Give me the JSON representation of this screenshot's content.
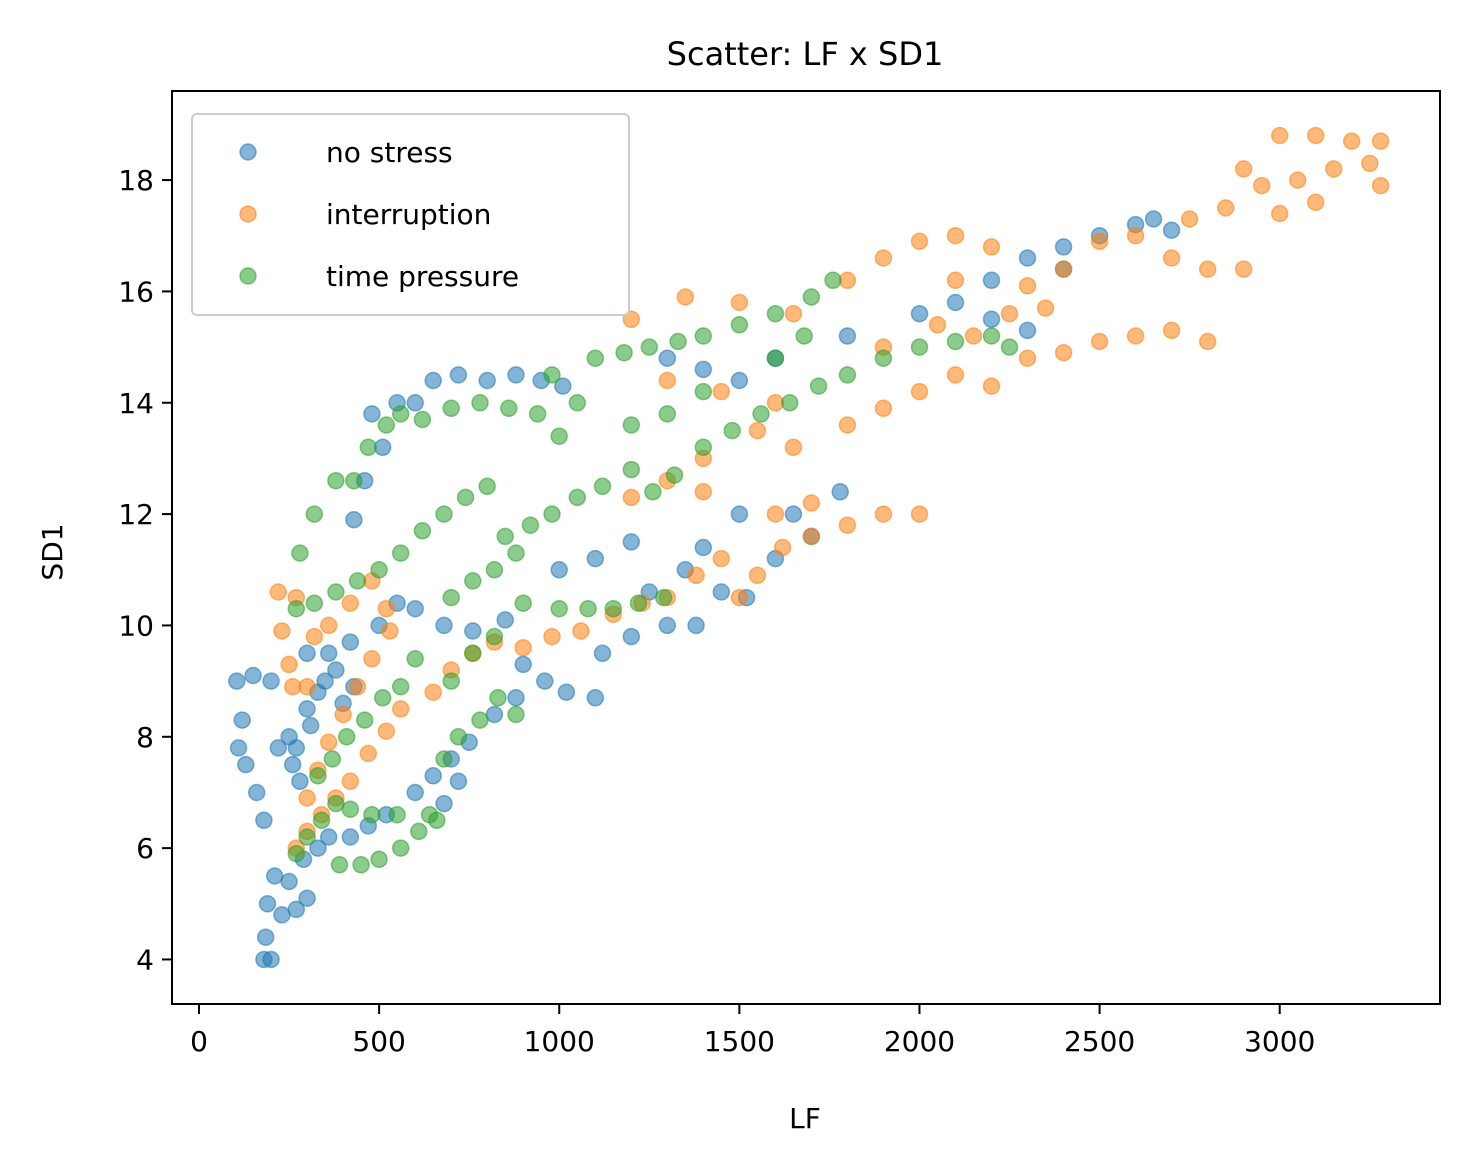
{
  "chart_data": {
    "type": "scatter",
    "title": "Scatter: LF x SD1",
    "xlabel": "LF",
    "ylabel": "SD1",
    "xlim": [
      -75,
      3445
    ],
    "ylim": [
      3.2,
      19.6
    ],
    "xticks": [
      0,
      500,
      1000,
      1500,
      2000,
      2500,
      3000
    ],
    "yticks": [
      4,
      6,
      8,
      10,
      12,
      14,
      16,
      18
    ],
    "grid": false,
    "legend_position": "upper left",
    "series": [
      {
        "name": "no stress",
        "color": "#1f77b4",
        "points": [
          [
            180,
            4.0
          ],
          [
            200,
            4.0
          ],
          [
            185,
            4.4
          ],
          [
            190,
            5.0
          ],
          [
            230,
            4.8
          ],
          [
            270,
            4.9
          ],
          [
            300,
            5.1
          ],
          [
            210,
            5.5
          ],
          [
            250,
            5.4
          ],
          [
            290,
            5.8
          ],
          [
            330,
            6.0
          ],
          [
            360,
            6.2
          ],
          [
            420,
            6.2
          ],
          [
            470,
            6.4
          ],
          [
            520,
            6.6
          ],
          [
            180,
            6.5
          ],
          [
            160,
            7.0
          ],
          [
            130,
            7.5
          ],
          [
            110,
            7.8
          ],
          [
            120,
            8.3
          ],
          [
            105,
            9.0
          ],
          [
            150,
            9.1
          ],
          [
            200,
            9.0
          ],
          [
            220,
            7.8
          ],
          [
            260,
            7.5
          ],
          [
            280,
            7.2
          ],
          [
            310,
            8.2
          ],
          [
            330,
            8.8
          ],
          [
            300,
            8.5
          ],
          [
            350,
            9.0
          ],
          [
            380,
            9.2
          ],
          [
            270,
            7.8
          ],
          [
            250,
            8.0
          ],
          [
            400,
            8.6
          ],
          [
            430,
            8.9
          ],
          [
            300,
            9.5
          ],
          [
            360,
            9.5
          ],
          [
            420,
            9.7
          ],
          [
            500,
            10.0
          ],
          [
            550,
            10.4
          ],
          [
            600,
            10.3
          ],
          [
            680,
            10.0
          ],
          [
            760,
            9.9
          ],
          [
            850,
            10.1
          ],
          [
            900,
            9.3
          ],
          [
            960,
            9.0
          ],
          [
            1020,
            8.8
          ],
          [
            1100,
            8.7
          ],
          [
            1120,
            9.5
          ],
          [
            1200,
            9.8
          ],
          [
            1300,
            10.0
          ],
          [
            1380,
            10.0
          ],
          [
            1250,
            10.6
          ],
          [
            1450,
            10.6
          ],
          [
            1520,
            10.5
          ],
          [
            1600,
            11.2
          ],
          [
            1700,
            11.6
          ],
          [
            1780,
            12.4
          ],
          [
            1650,
            12.0
          ],
          [
            1500,
            12.0
          ],
          [
            1400,
            11.4
          ],
          [
            1350,
            11.0
          ],
          [
            1200,
            11.5
          ],
          [
            1100,
            11.2
          ],
          [
            1000,
            11.0
          ],
          [
            550,
            14.0
          ],
          [
            600,
            14.0
          ],
          [
            480,
            13.8
          ],
          [
            510,
            13.2
          ],
          [
            460,
            12.6
          ],
          [
            430,
            11.9
          ],
          [
            650,
            14.4
          ],
          [
            720,
            14.5
          ],
          [
            800,
            14.4
          ],
          [
            880,
            14.5
          ],
          [
            950,
            14.4
          ],
          [
            1010,
            14.3
          ],
          [
            1300,
            14.8
          ],
          [
            1400,
            14.6
          ],
          [
            1500,
            14.4
          ],
          [
            1600,
            14.8
          ],
          [
            1800,
            15.2
          ],
          [
            2000,
            15.6
          ],
          [
            2100,
            15.8
          ],
          [
            2200,
            15.5
          ],
          [
            2300,
            15.3
          ],
          [
            2200,
            16.2
          ],
          [
            2300,
            16.6
          ],
          [
            2400,
            16.8
          ],
          [
            2500,
            17.0
          ],
          [
            2600,
            17.2
          ],
          [
            2650,
            17.3
          ],
          [
            2700,
            17.1
          ],
          [
            2400,
            16.4
          ],
          [
            600,
            7.0
          ],
          [
            650,
            7.3
          ],
          [
            700,
            7.6
          ],
          [
            750,
            7.9
          ],
          [
            820,
            8.4
          ],
          [
            880,
            8.7
          ],
          [
            680,
            6.8
          ],
          [
            720,
            7.2
          ]
        ]
      },
      {
        "name": "interruption",
        "color": "#ff7f0e",
        "points": [
          [
            270,
            6.0
          ],
          [
            300,
            6.3
          ],
          [
            340,
            6.6
          ],
          [
            380,
            6.9
          ],
          [
            420,
            7.2
          ],
          [
            470,
            7.7
          ],
          [
            520,
            8.1
          ],
          [
            560,
            8.5
          ],
          [
            300,
            6.9
          ],
          [
            330,
            7.4
          ],
          [
            360,
            7.9
          ],
          [
            400,
            8.4
          ],
          [
            440,
            8.9
          ],
          [
            480,
            9.4
          ],
          [
            530,
            9.9
          ],
          [
            250,
            9.3
          ],
          [
            230,
            9.9
          ],
          [
            220,
            10.6
          ],
          [
            270,
            10.5
          ],
          [
            260,
            8.9
          ],
          [
            300,
            8.9
          ],
          [
            320,
            9.8
          ],
          [
            360,
            10.0
          ],
          [
            420,
            10.4
          ],
          [
            480,
            10.8
          ],
          [
            520,
            10.3
          ],
          [
            650,
            8.8
          ],
          [
            700,
            9.2
          ],
          [
            760,
            9.5
          ],
          [
            820,
            9.7
          ],
          [
            900,
            9.6
          ],
          [
            980,
            9.8
          ],
          [
            1060,
            9.9
          ],
          [
            1150,
            10.2
          ],
          [
            1230,
            10.4
          ],
          [
            1300,
            10.5
          ],
          [
            1380,
            10.9
          ],
          [
            1450,
            11.2
          ],
          [
            1500,
            10.5
          ],
          [
            1550,
            10.9
          ],
          [
            1620,
            11.4
          ],
          [
            1700,
            11.6
          ],
          [
            1800,
            11.8
          ],
          [
            1900,
            12.0
          ],
          [
            2000,
            12.0
          ],
          [
            1600,
            12.0
          ],
          [
            1700,
            12.2
          ],
          [
            1400,
            12.4
          ],
          [
            1300,
            12.6
          ],
          [
            1200,
            12.3
          ],
          [
            1400,
            13.0
          ],
          [
            1550,
            13.5
          ],
          [
            1650,
            13.2
          ],
          [
            1800,
            13.6
          ],
          [
            1900,
            13.9
          ],
          [
            2000,
            14.2
          ],
          [
            2100,
            14.5
          ],
          [
            2200,
            14.3
          ],
          [
            2300,
            14.8
          ],
          [
            2400,
            14.9
          ],
          [
            2500,
            15.1
          ],
          [
            2600,
            15.2
          ],
          [
            2700,
            15.3
          ],
          [
            2800,
            15.1
          ],
          [
            1200,
            15.5
          ],
          [
            1350,
            15.9
          ],
          [
            1500,
            15.8
          ],
          [
            1650,
            15.6
          ],
          [
            1800,
            16.2
          ],
          [
            1900,
            16.6
          ],
          [
            2000,
            16.9
          ],
          [
            2100,
            17.0
          ],
          [
            2200,
            16.8
          ],
          [
            2100,
            16.2
          ],
          [
            2300,
            16.1
          ],
          [
            2400,
            16.4
          ],
          [
            2500,
            16.9
          ],
          [
            2600,
            17.0
          ],
          [
            2700,
            16.6
          ],
          [
            2800,
            16.4
          ],
          [
            2900,
            16.4
          ],
          [
            2750,
            17.3
          ],
          [
            2850,
            17.5
          ],
          [
            2950,
            17.9
          ],
          [
            3050,
            18.0
          ],
          [
            3150,
            18.2
          ],
          [
            3250,
            18.3
          ],
          [
            3280,
            17.9
          ],
          [
            2900,
            18.2
          ],
          [
            3000,
            18.8
          ],
          [
            3100,
            18.8
          ],
          [
            3200,
            18.7
          ],
          [
            3280,
            18.7
          ],
          [
            3100,
            17.6
          ],
          [
            3000,
            17.4
          ],
          [
            1900,
            15.0
          ],
          [
            2050,
            15.4
          ],
          [
            2150,
            15.2
          ],
          [
            2250,
            15.6
          ],
          [
            2350,
            15.7
          ],
          [
            1300,
            14.4
          ],
          [
            1450,
            14.2
          ],
          [
            1600,
            14.0
          ]
        ]
      },
      {
        "name": "time pressure",
        "color": "#2ca02c",
        "points": [
          [
            270,
            5.9
          ],
          [
            300,
            6.2
          ],
          [
            340,
            6.5
          ],
          [
            380,
            6.8
          ],
          [
            420,
            6.7
          ],
          [
            480,
            6.6
          ],
          [
            550,
            6.6
          ],
          [
            640,
            6.6
          ],
          [
            390,
            5.7
          ],
          [
            450,
            5.7
          ],
          [
            500,
            5.8
          ],
          [
            560,
            6.0
          ],
          [
            610,
            6.3
          ],
          [
            660,
            6.5
          ],
          [
            330,
            7.3
          ],
          [
            370,
            7.6
          ],
          [
            410,
            8.0
          ],
          [
            460,
            8.3
          ],
          [
            510,
            8.7
          ],
          [
            560,
            8.9
          ],
          [
            600,
            9.4
          ],
          [
            680,
            7.6
          ],
          [
            720,
            8.0
          ],
          [
            780,
            8.3
          ],
          [
            830,
            8.7
          ],
          [
            880,
            8.4
          ],
          [
            270,
            10.3
          ],
          [
            320,
            10.4
          ],
          [
            380,
            10.6
          ],
          [
            440,
            10.8
          ],
          [
            500,
            11.0
          ],
          [
            560,
            11.3
          ],
          [
            620,
            11.7
          ],
          [
            680,
            12.0
          ],
          [
            740,
            12.3
          ],
          [
            800,
            12.5
          ],
          [
            280,
            11.3
          ],
          [
            320,
            12.0
          ],
          [
            380,
            12.6
          ],
          [
            430,
            12.6
          ],
          [
            470,
            13.2
          ],
          [
            520,
            13.6
          ],
          [
            560,
            13.8
          ],
          [
            620,
            13.7
          ],
          [
            700,
            13.9
          ],
          [
            780,
            14.0
          ],
          [
            860,
            13.9
          ],
          [
            940,
            13.8
          ],
          [
            1000,
            13.4
          ],
          [
            850,
            11.6
          ],
          [
            920,
            11.8
          ],
          [
            980,
            12.0
          ],
          [
            1050,
            12.3
          ],
          [
            1120,
            12.5
          ],
          [
            1200,
            12.8
          ],
          [
            1260,
            12.4
          ],
          [
            1320,
            12.7
          ],
          [
            1400,
            13.2
          ],
          [
            1480,
            13.5
          ],
          [
            1560,
            13.8
          ],
          [
            1640,
            14.0
          ],
          [
            1720,
            14.3
          ],
          [
            1800,
            14.5
          ],
          [
            1900,
            14.8
          ],
          [
            2000,
            15.0
          ],
          [
            2100,
            15.1
          ],
          [
            2200,
            15.2
          ],
          [
            2250,
            15.0
          ],
          [
            1100,
            14.8
          ],
          [
            1180,
            14.9
          ],
          [
            1250,
            15.0
          ],
          [
            1330,
            15.1
          ],
          [
            1400,
            15.2
          ],
          [
            1500,
            15.4
          ],
          [
            1600,
            15.6
          ],
          [
            1700,
            15.9
          ],
          [
            1760,
            16.2
          ],
          [
            1680,
            15.2
          ],
          [
            1600,
            14.8
          ],
          [
            1400,
            14.2
          ],
          [
            1300,
            13.8
          ],
          [
            1200,
            13.6
          ],
          [
            1050,
            14.0
          ],
          [
            980,
            14.5
          ],
          [
            900,
            10.4
          ],
          [
            1000,
            10.3
          ],
          [
            1080,
            10.3
          ],
          [
            1150,
            10.3
          ],
          [
            1220,
            10.4
          ],
          [
            1290,
            10.5
          ],
          [
            700,
            10.5
          ],
          [
            760,
            10.8
          ],
          [
            820,
            11.0
          ],
          [
            880,
            11.3
          ],
          [
            760,
            9.5
          ],
          [
            820,
            9.8
          ],
          [
            700,
            9.0
          ]
        ]
      }
    ]
  }
}
